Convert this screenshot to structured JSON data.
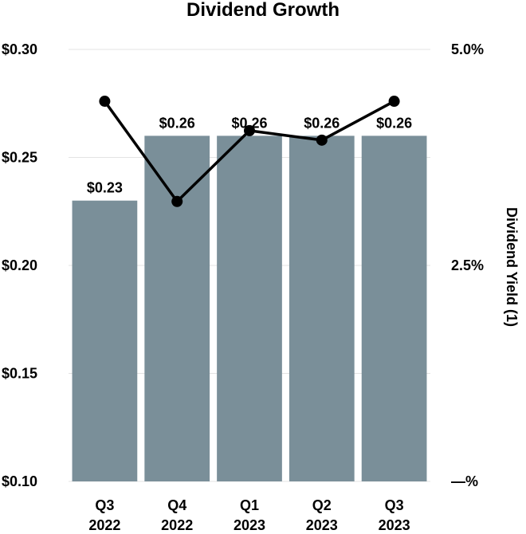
{
  "chart_data": {
    "type": "bar",
    "title": "Dividend Growth",
    "categories": [
      [
        "Q3",
        "2022"
      ],
      [
        "Q4",
        "2022"
      ],
      [
        "Q1",
        "2023"
      ],
      [
        "Q2",
        "2023"
      ],
      [
        "Q3",
        "2023"
      ]
    ],
    "series": [
      {
        "type": "bar",
        "axis": "left",
        "values": [
          0.23,
          0.26,
          0.26,
          0.26,
          0.26
        ],
        "data_labels": [
          "$0.23",
          "$0.26",
          "$0.26",
          "$0.26",
          "$0.26"
        ],
        "color": "#7a8f99"
      },
      {
        "type": "line",
        "axis": "right",
        "values": [
          4.4,
          3.24,
          4.06,
          3.95,
          4.4
        ],
        "color": "#000000"
      }
    ],
    "y_left": {
      "ylim": [
        0.1,
        0.3
      ],
      "ticks": [
        0.3,
        0.25,
        0.2,
        0.15,
        0.1
      ],
      "tick_labels": [
        "$0.30",
        "$0.25",
        "$0.20",
        "$0.15",
        "$0.10"
      ]
    },
    "y_right": {
      "label": "Dividend Yield (1)",
      "ylim": [
        0,
        5
      ],
      "ticks": [
        5,
        2.5,
        0
      ],
      "tick_labels": [
        "5.0%",
        "2.5%",
        "—%"
      ]
    },
    "grid": true,
    "legend": "none"
  }
}
